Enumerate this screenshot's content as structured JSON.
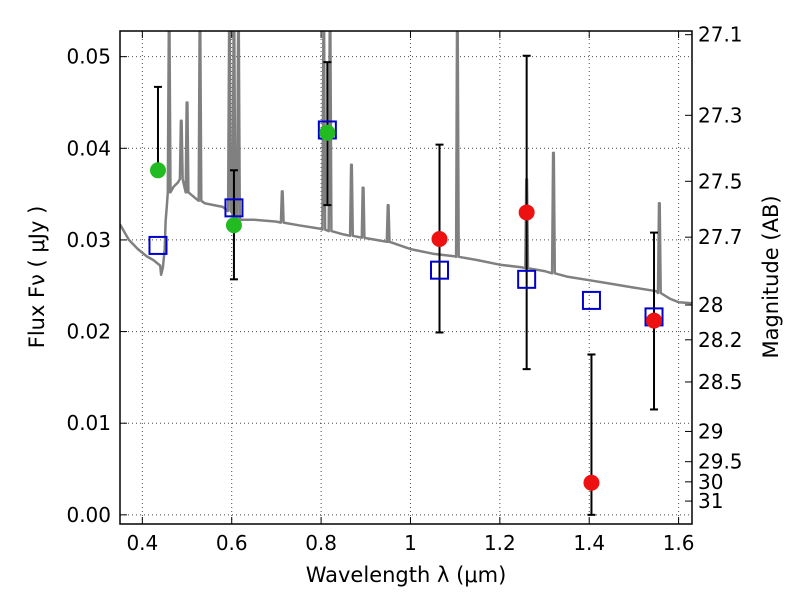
{
  "chart_data": {
    "type": "scatter",
    "xlabel": "Wavelength  λ (μm)",
    "ylabel": "Flux  Fν  ( μJy )",
    "y2label": "Magnitude (AB)",
    "xlim": [
      0.35,
      1.63
    ],
    "ylim": [
      -0.001,
      0.0528
    ],
    "grid": true,
    "x_ticks": [
      0.4,
      0.6,
      0.8,
      1.0,
      1.2,
      1.4,
      1.6
    ],
    "x_tick_labels": [
      "0.4",
      "0.6",
      "0.8",
      "1",
      "1.2",
      "1.4",
      "1.6"
    ],
    "y_ticks": [
      0.0,
      0.01,
      0.02,
      0.03,
      0.04,
      0.05
    ],
    "y_tick_labels": [
      "0.00",
      "0.01",
      "0.02",
      "0.03",
      "0.04",
      "0.05"
    ],
    "y2_ticks": [
      {
        "label": "27.1",
        "flux": 0.0524
      },
      {
        "label": "27.3",
        "flux": 0.0436
      },
      {
        "label": "27.5",
        "flux": 0.0364
      },
      {
        "label": "27.7",
        "flux": 0.0303
      },
      {
        "label": "28",
        "flux": 0.0229
      },
      {
        "label": "28.2",
        "flux": 0.0191
      },
      {
        "label": "28.5",
        "flux": 0.0145
      },
      {
        "label": "29",
        "flux": 0.0091
      },
      {
        "label": "29.5",
        "flux": 0.0058
      },
      {
        "label": "30",
        "flux": 0.0036
      },
      {
        "label": "31",
        "flux": 0.0015
      }
    ],
    "series": [
      {
        "color": "#808080",
        "marker": "line",
        "x": [
          0.35,
          0.37,
          0.39,
          0.41,
          0.425,
          0.44,
          0.442,
          0.446,
          0.45,
          0.452,
          0.455,
          0.46,
          0.47,
          0.48,
          0.49,
          0.5,
          0.52,
          0.54,
          0.56,
          0.58,
          0.6,
          0.62,
          0.65,
          0.7,
          0.75,
          0.8,
          0.85,
          0.9,
          0.95,
          1.0,
          1.05,
          1.1,
          1.15,
          1.2,
          1.25,
          1.3,
          1.35,
          1.4,
          1.45,
          1.5,
          1.55,
          1.58,
          1.6,
          1.63
        ],
        "y": [
          0.0317,
          0.03,
          0.029,
          0.0282,
          0.0278,
          0.0272,
          0.0262,
          0.027,
          0.029,
          0.032,
          0.0338,
          0.0352,
          0.0358,
          0.0363,
          0.0368,
          0.0352,
          0.0345,
          0.034,
          0.0338,
          0.0336,
          0.033,
          0.0322,
          0.0322,
          0.032,
          0.0316,
          0.0312,
          0.0306,
          0.0302,
          0.0298,
          0.029,
          0.0285,
          0.0282,
          0.0278,
          0.0273,
          0.027,
          0.0266,
          0.026,
          0.0256,
          0.0252,
          0.0248,
          0.0244,
          0.0236,
          0.0232,
          0.0231
        ],
        "emission_lines": [
          {
            "x": 0.46,
            "peak": 0.0528
          },
          {
            "x": 0.487,
            "peak": 0.043
          },
          {
            "x": 0.5,
            "peak": 0.045
          },
          {
            "x": 0.529,
            "peak": 0.0528
          },
          {
            "x": 0.595,
            "peak": 0.0528
          },
          {
            "x": 0.605,
            "peak": 0.0528
          },
          {
            "x": 0.615,
            "peak": 0.0528
          },
          {
            "x": 0.713,
            "peak": 0.0353
          },
          {
            "x": 0.806,
            "peak": 0.0528
          },
          {
            "x": 0.82,
            "peak": 0.0528
          },
          {
            "x": 0.868,
            "peak": 0.0382
          },
          {
            "x": 0.894,
            "peak": 0.0357
          },
          {
            "x": 0.95,
            "peak": 0.0338
          },
          {
            "x": 1.105,
            "peak": 0.0528
          },
          {
            "x": 1.26,
            "peak": 0.0366
          },
          {
            "x": 1.32,
            "peak": 0.0395
          },
          {
            "x": 1.557,
            "peak": 0.034
          }
        ]
      },
      {
        "color": "#0000cc",
        "marker": "open-square",
        "x": [
          0.435,
          0.605,
          0.814,
          1.065,
          1.26,
          1.405,
          1.545
        ],
        "y": [
          0.0294,
          0.0335,
          0.042,
          0.0267,
          0.0257,
          0.0234,
          0.0216
        ]
      },
      {
        "color": "#22bb22",
        "marker": "filled-circle",
        "x": [
          0.435,
          0.605,
          0.814
        ],
        "y": [
          0.0376,
          0.0316,
          0.0417
        ],
        "yerr": [
          [
            0.0376,
            0.0467
          ],
          [
            0.0257,
            0.0376
          ],
          [
            0.0338,
            0.0494
          ]
        ]
      },
      {
        "color": "#ee1111",
        "marker": "filled-circle",
        "x": [
          1.065,
          1.26,
          1.405,
          1.545
        ],
        "y": [
          0.0301,
          0.033,
          0.0035,
          0.0212
        ],
        "yerr": [
          [
            0.0199,
            0.0404
          ],
          [
            0.0159,
            0.0501
          ],
          [
            0.0,
            0.0175
          ],
          [
            0.0115,
            0.0308
          ]
        ]
      }
    ]
  }
}
